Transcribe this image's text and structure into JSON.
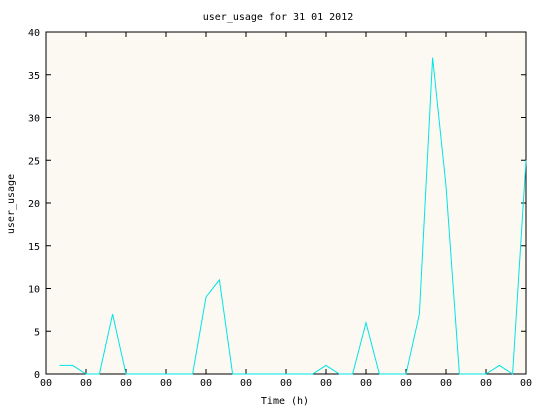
{
  "chart_data": {
    "type": "line",
    "title": "user_usage for 31 01 2012",
    "xlabel": "Time (h)",
    "ylabel": "user_usage",
    "xlim": [
      0,
      24
    ],
    "ylim": [
      0,
      40
    ],
    "y_ticks": [
      0,
      5,
      10,
      15,
      20,
      25,
      30,
      35,
      40
    ],
    "x_ticks": [
      0,
      2,
      4,
      6,
      8,
      10,
      12,
      14,
      16,
      18,
      20,
      22,
      24
    ],
    "x_tick_labels": [
      "00",
      "00",
      "00",
      "00",
      "00",
      "00",
      "00",
      "00",
      "00",
      "00",
      "00",
      "00",
      "00"
    ],
    "grid": false,
    "legend": "none",
    "series": [
      {
        "color": "#00e5e5",
        "x": [
          0.67,
          1.33,
          2.0,
          2.67,
          3.33,
          4.0,
          4.67,
          5.33,
          6.0,
          6.67,
          7.33,
          8.0,
          8.67,
          9.33,
          10.0,
          10.67,
          11.33,
          12.0,
          12.67,
          13.33,
          14.0,
          14.67,
          15.33,
          16.0,
          16.67,
          17.33,
          18.0,
          18.67,
          19.33,
          20.0,
          20.67,
          21.33,
          22.0,
          22.67,
          23.33,
          24.0
        ],
        "y": [
          1,
          1,
          0,
          0,
          7,
          0,
          0,
          0,
          0,
          0,
          0,
          9,
          11,
          0,
          0,
          0,
          0,
          0,
          0,
          0,
          1,
          0,
          0,
          6,
          0,
          0,
          0,
          7,
          37,
          22,
          0,
          0,
          0,
          1,
          0,
          25
        ]
      }
    ]
  },
  "colors": {
    "plot_background": "#fcf9f2",
    "frame": "#000000",
    "line": "#00e5e5"
  }
}
